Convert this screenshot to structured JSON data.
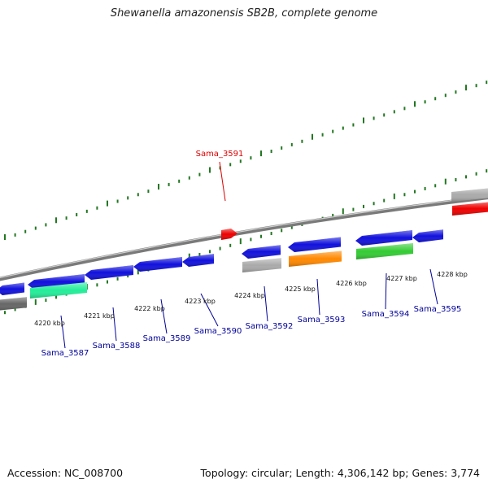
{
  "title": "Shewanella amazonensis SB2B, complete genome",
  "footer": {
    "accession_label": "Accession:",
    "accession": "NC_008700",
    "topology_label": "Topology:",
    "topology": "circular",
    "length_label": "Length:",
    "length": "4,306,142 bp",
    "genes_label": "Genes:",
    "genes": "3,774"
  },
  "colors": {
    "backbone": "#777777",
    "cds_forward": "#1010dd",
    "cds_reverse": "#1010dd",
    "gene_red": "#ee0000",
    "gene_orange": "#ff8800",
    "gene_green": "#33cc33",
    "gene_teal": "#22ee99",
    "gene_gray": "#aaaaaa",
    "gene_darkgray": "#666666",
    "tick_color": "#227722",
    "label_blue": "#000099",
    "label_red": "#dd0000"
  },
  "scale": {
    "ticks_kbp": [
      {
        "label": "4220 kbp",
        "value": 4220
      },
      {
        "label": "4221 kbp",
        "value": 4221
      },
      {
        "label": "4222 kbp",
        "value": 4222
      },
      {
        "label": "4223 kbp",
        "value": 4223
      },
      {
        "label": "4224 kbp",
        "value": 4224
      },
      {
        "label": "4225 kbp",
        "value": 4225
      },
      {
        "label": "4226 kbp",
        "value": 4226
      },
      {
        "label": "4227 kbp",
        "value": 4227
      },
      {
        "label": "4228 kbp",
        "value": 4228
      }
    ]
  },
  "gene_labels": [
    {
      "name": "Sama_3587",
      "color": "label_blue"
    },
    {
      "name": "Sama_3588",
      "color": "label_blue"
    },
    {
      "name": "Sama_3589",
      "color": "label_blue"
    },
    {
      "name": "Sama_3590",
      "color": "label_blue"
    },
    {
      "name": "Sama_3591",
      "color": "label_red"
    },
    {
      "name": "Sama_3592",
      "color": "label_blue"
    },
    {
      "name": "Sama_3593",
      "color": "label_blue"
    },
    {
      "name": "Sama_3594",
      "color": "label_blue"
    },
    {
      "name": "Sama_3595",
      "color": "label_blue"
    }
  ]
}
